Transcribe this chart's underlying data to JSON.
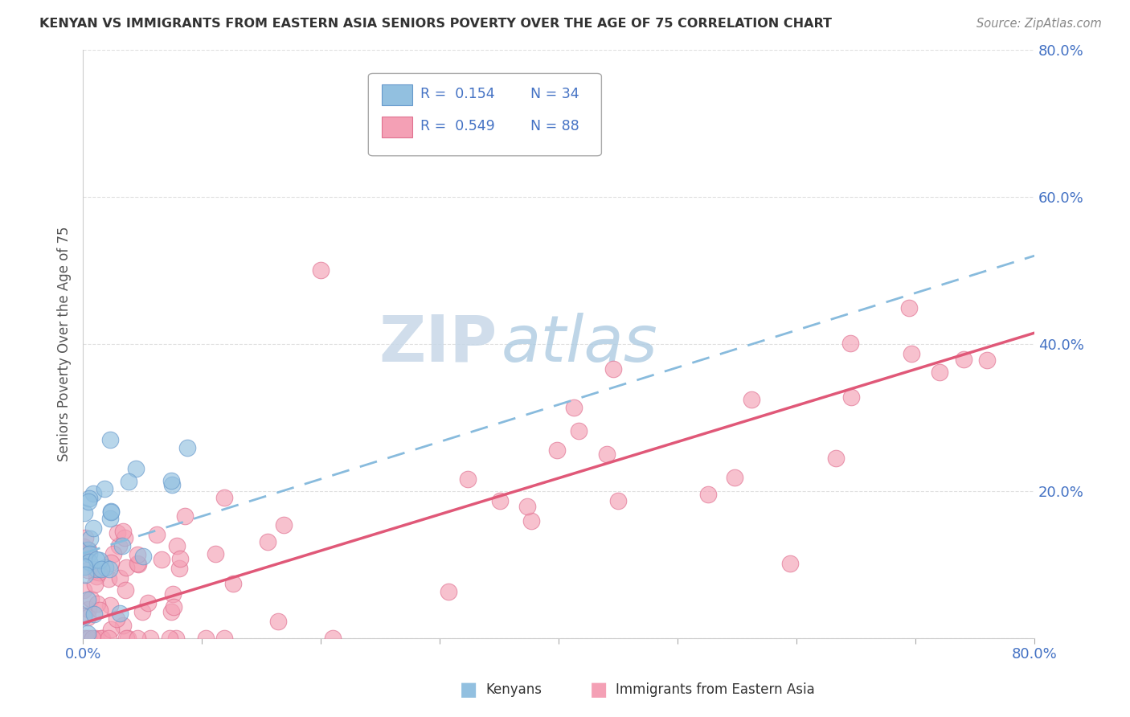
{
  "title": "KENYAN VS IMMIGRANTS FROM EASTERN ASIA SENIORS POVERTY OVER THE AGE OF 75 CORRELATION CHART",
  "source": "Source: ZipAtlas.com",
  "ylabel": "Seniors Poverty Over the Age of 75",
  "xlim": [
    0.0,
    0.8
  ],
  "ylim": [
    0.0,
    0.8
  ],
  "group1_label": "Kenyans",
  "group1_color": "#92C0E0",
  "group1_edge": "#6699CC",
  "group1_line_color": "#88BBDD",
  "group1_R": 0.154,
  "group1_N": 34,
  "group2_label": "Immigrants from Eastern Asia",
  "group2_color": "#F4A0B5",
  "group2_edge": "#E07090",
  "group2_line_color": "#E05878",
  "group2_R": 0.549,
  "group2_N": 88,
  "watermark_zip": "ZIP",
  "watermark_atlas": "atlas",
  "watermark_zip_color": "#C8D8E8",
  "watermark_atlas_color": "#A8C8E0",
  "background_color": "#FFFFFF",
  "grid_color": "#DDDDDD",
  "title_color": "#333333",
  "axis_label_color": "#555555",
  "tick_color": "#4472C4",
  "legend_color": "#4472C4",
  "seed1": 42,
  "seed2": 99,
  "ken_line_start_y": 0.115,
  "ken_line_end_y": 0.52,
  "ea_line_start_y": 0.02,
  "ea_line_end_y": 0.415
}
